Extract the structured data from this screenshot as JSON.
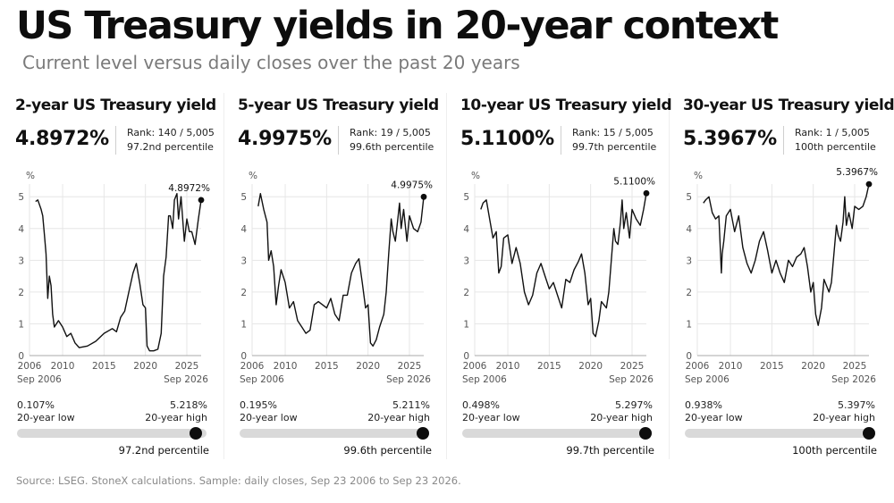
{
  "title": "US Treasury yields in 20-year context",
  "subtitle": "Current level versus daily closes over the past 20 years",
  "source": "Source: LSEG. StoneX calculations. Sample: daily closes, Sep 23 2006 to Sep 23 2026.",
  "colors": {
    "line": "#111111",
    "grid": "#e6e6e6",
    "bar_track": "#d9d9d9",
    "dot": "#0d0d0d",
    "subtitle": "#7a7a7a"
  },
  "panels": [
    {
      "title": "2-year US Treasury yield",
      "value": "4.8972%",
      "rank": "Rank: 140 / 5,005",
      "percentile": "97.2nd percentile",
      "low_value": "0.107%",
      "low_label": "20-year low",
      "high_value": "5.218%",
      "high_label": "20-year high",
      "percentile_fraction": 0.972
    },
    {
      "title": "5-year US Treasury yield",
      "value": "4.9975%",
      "rank": "Rank: 19 / 5,005",
      "percentile": "99.6th percentile",
      "low_value": "0.195%",
      "low_label": "20-year low",
      "high_value": "5.211%",
      "high_label": "20-year high",
      "percentile_fraction": 0.996
    },
    {
      "title": "10-year US Treasury yield",
      "value": "5.1100%",
      "rank": "Rank: 15 / 5,005",
      "percentile": "99.7th percentile",
      "low_value": "0.498%",
      "low_label": "20-year low",
      "high_value": "5.297%",
      "high_label": "20-year high",
      "percentile_fraction": 0.997
    },
    {
      "title": "30-year US Treasury yield",
      "value": "5.3967%",
      "rank": "Rank: 1 / 5,005",
      "percentile": "100th percentile",
      "low_value": "0.938%",
      "low_label": "20-year low",
      "high_value": "5.397%",
      "high_label": "20-year high",
      "percentile_fraction": 1.0
    }
  ],
  "chart_data": [
    {
      "type": "line",
      "ylabel": "%",
      "ylim": [
        0,
        5.4
      ],
      "xlim": [
        2006,
        2026.73
      ],
      "y_ticks": [
        "0",
        "1",
        "2",
        "3",
        "4",
        "5"
      ],
      "x_ticks": [
        "2006",
        "2010",
        "2015",
        "2020",
        "2025"
      ],
      "x_start_label": "Sep 2006",
      "x_end_label": "Sep 2026",
      "end_label": "4.8972%",
      "series": [
        {
          "x": [
            2006.73,
            2007.0,
            2007.4,
            2007.6,
            2007.8,
            2008.0,
            2008.2,
            2008.4,
            2008.6,
            2008.8,
            2009.0,
            2009.5,
            2010.0,
            2010.5,
            2011.0,
            2011.5,
            2012.0,
            2013.0,
            2014.0,
            2015.0,
            2016.0,
            2016.5,
            2017.0,
            2017.5,
            2018.0,
            2018.5,
            2018.9,
            2019.3,
            2019.7,
            2020.0,
            2020.2,
            2020.5,
            2021.0,
            2021.5,
            2021.9,
            2022.2,
            2022.5,
            2022.8,
            2023.0,
            2023.3,
            2023.5,
            2023.8,
            2024.0,
            2024.3,
            2024.7,
            2025.0,
            2025.3,
            2025.6,
            2026.0,
            2026.4,
            2026.73
          ],
          "values": [
            4.85,
            4.9,
            4.6,
            4.4,
            3.8,
            3.2,
            1.8,
            2.5,
            2.2,
            1.3,
            0.9,
            1.1,
            0.9,
            0.6,
            0.7,
            0.4,
            0.25,
            0.3,
            0.45,
            0.7,
            0.85,
            0.75,
            1.2,
            1.4,
            2.0,
            2.6,
            2.9,
            2.3,
            1.6,
            1.5,
            0.3,
            0.15,
            0.15,
            0.2,
            0.7,
            2.5,
            3.1,
            4.4,
            4.4,
            4.0,
            4.9,
            5.1,
            4.3,
            5.0,
            3.6,
            4.3,
            3.9,
            3.9,
            3.5,
            4.3,
            4.8972
          ]
        }
      ]
    },
    {
      "type": "line",
      "ylabel": "%",
      "ylim": [
        0,
        5.4
      ],
      "xlim": [
        2006,
        2026.73
      ],
      "y_ticks": [
        "0",
        "1",
        "2",
        "3",
        "4",
        "5"
      ],
      "x_ticks": [
        "2006",
        "2010",
        "2015",
        "2020",
        "2025"
      ],
      "x_start_label": "Sep 2006",
      "x_end_label": "Sep 2026",
      "end_label": "4.9975%",
      "series": [
        {
          "x": [
            2006.73,
            2007.0,
            2007.4,
            2007.8,
            2008.0,
            2008.3,
            2008.6,
            2008.9,
            2009.2,
            2009.5,
            2010.0,
            2010.5,
            2011.0,
            2011.5,
            2012.0,
            2012.5,
            2013.0,
            2013.5,
            2014.0,
            2014.5,
            2015.0,
            2015.5,
            2016.0,
            2016.5,
            2017.0,
            2017.5,
            2018.0,
            2018.5,
            2018.9,
            2019.3,
            2019.7,
            2020.0,
            2020.3,
            2020.6,
            2021.0,
            2021.4,
            2021.9,
            2022.2,
            2022.5,
            2022.8,
            2023.0,
            2023.3,
            2023.6,
            2023.8,
            2024.0,
            2024.3,
            2024.7,
            2025.0,
            2025.5,
            2026.0,
            2026.4,
            2026.73
          ],
          "values": [
            4.7,
            5.1,
            4.6,
            4.2,
            3.0,
            3.3,
            2.8,
            1.6,
            2.2,
            2.7,
            2.3,
            1.5,
            1.7,
            1.1,
            0.9,
            0.7,
            0.8,
            1.6,
            1.7,
            1.6,
            1.5,
            1.8,
            1.3,
            1.1,
            1.9,
            1.9,
            2.6,
            2.9,
            3.05,
            2.3,
            1.5,
            1.6,
            0.4,
            0.3,
            0.5,
            0.9,
            1.3,
            2.0,
            3.2,
            4.3,
            3.9,
            3.6,
            4.3,
            4.8,
            4.0,
            4.6,
            3.6,
            4.4,
            4.0,
            3.9,
            4.2,
            4.9975
          ]
        }
      ]
    },
    {
      "type": "line",
      "ylabel": "%",
      "ylim": [
        0,
        5.4
      ],
      "xlim": [
        2006,
        2026.73
      ],
      "y_ticks": [
        "0",
        "1",
        "2",
        "3",
        "4",
        "5"
      ],
      "x_ticks": [
        "2006",
        "2010",
        "2015",
        "2020",
        "2025"
      ],
      "x_start_label": "Sep 2006",
      "x_end_label": "Sep 2026",
      "end_label": "5.1100%",
      "series": [
        {
          "x": [
            2006.73,
            2007.0,
            2007.4,
            2007.8,
            2008.2,
            2008.6,
            2008.9,
            2009.2,
            2009.5,
            2010.0,
            2010.5,
            2011.0,
            2011.5,
            2012.0,
            2012.5,
            2013.0,
            2013.5,
            2014.0,
            2014.5,
            2015.0,
            2015.5,
            2016.0,
            2016.5,
            2017.0,
            2017.5,
            2018.0,
            2018.5,
            2018.9,
            2019.3,
            2019.7,
            2020.0,
            2020.3,
            2020.6,
            2021.0,
            2021.3,
            2021.9,
            2022.2,
            2022.5,
            2022.8,
            2023.0,
            2023.3,
            2023.6,
            2023.8,
            2024.0,
            2024.3,
            2024.7,
            2025.0,
            2025.5,
            2026.0,
            2026.4,
            2026.73
          ],
          "values": [
            4.6,
            4.8,
            4.9,
            4.3,
            3.7,
            3.9,
            2.6,
            2.8,
            3.7,
            3.8,
            2.9,
            3.4,
            2.9,
            2.0,
            1.6,
            1.9,
            2.6,
            2.9,
            2.5,
            2.1,
            2.3,
            1.9,
            1.5,
            2.4,
            2.3,
            2.7,
            2.95,
            3.2,
            2.6,
            1.6,
            1.8,
            0.7,
            0.6,
            1.1,
            1.7,
            1.5,
            2.0,
            3.0,
            4.0,
            3.6,
            3.5,
            4.2,
            4.9,
            4.0,
            4.5,
            3.7,
            4.6,
            4.3,
            4.1,
            4.6,
            5.11
          ]
        }
      ]
    },
    {
      "type": "line",
      "ylabel": "%",
      "ylim": [
        0,
        5.4
      ],
      "xlim": [
        2006,
        2026.73
      ],
      "y_ticks": [
        "0",
        "1",
        "2",
        "3",
        "4",
        "5"
      ],
      "x_ticks": [
        "2006",
        "2010",
        "2015",
        "2020",
        "2025"
      ],
      "x_start_label": "Sep 2006",
      "x_end_label": "Sep 2026",
      "end_label": "5.3967%",
      "series": [
        {
          "x": [
            2006.73,
            2007.0,
            2007.4,
            2007.8,
            2008.2,
            2008.6,
            2008.9,
            2009.0,
            2009.2,
            2009.5,
            2010.0,
            2010.5,
            2011.0,
            2011.5,
            2012.0,
            2012.5,
            2013.0,
            2013.5,
            2014.0,
            2014.5,
            2015.0,
            2015.5,
            2016.0,
            2016.5,
            2017.0,
            2017.5,
            2018.0,
            2018.5,
            2018.9,
            2019.3,
            2019.7,
            2020.0,
            2020.3,
            2020.6,
            2021.0,
            2021.3,
            2021.9,
            2022.2,
            2022.5,
            2022.8,
            2023.0,
            2023.3,
            2023.6,
            2023.8,
            2024.0,
            2024.3,
            2024.7,
            2025.0,
            2025.5,
            2026.0,
            2026.4,
            2026.73
          ],
          "values": [
            4.8,
            4.9,
            5.0,
            4.5,
            4.3,
            4.4,
            2.6,
            3.2,
            3.6,
            4.4,
            4.6,
            3.9,
            4.4,
            3.4,
            2.9,
            2.6,
            3.0,
            3.6,
            3.9,
            3.3,
            2.6,
            3.0,
            2.6,
            2.3,
            3.0,
            2.8,
            3.1,
            3.2,
            3.4,
            2.8,
            2.0,
            2.3,
            1.3,
            0.95,
            1.5,
            2.4,
            2.0,
            2.3,
            3.2,
            4.1,
            3.8,
            3.6,
            4.2,
            5.0,
            4.1,
            4.5,
            4.0,
            4.7,
            4.6,
            4.7,
            5.0,
            5.3967
          ]
        }
      ]
    }
  ]
}
